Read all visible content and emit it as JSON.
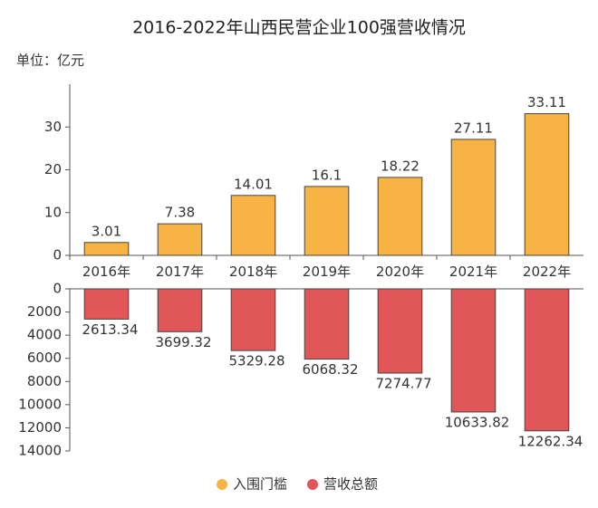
{
  "chart_data": {
    "type": "bar",
    "title": "2016-2022年山西民营企业100强营收情况",
    "y_label": "单位：亿元",
    "categories": [
      "2016年",
      "2017年",
      "2018年",
      "2019年",
      "2020年",
      "2021年",
      "2022年"
    ],
    "series": [
      {
        "name": "入围门槛",
        "color": "#f7b445",
        "values": [
          3.01,
          7.38,
          14.01,
          16.1,
          18.22,
          27.11,
          33.11
        ]
      },
      {
        "name": "营收总额",
        "color": "#e15759",
        "axis": "y2",
        "values": [
          2613.34,
          3699.32,
          5329.28,
          6068.32,
          7274.77,
          10633.82,
          12262.34
        ]
      }
    ],
    "ylim": [
      0,
      40
    ],
    "yticks": [
      0,
      10,
      20,
      30
    ],
    "y2lim": [
      0,
      14000
    ],
    "y2ticks": [
      0,
      2000,
      4000,
      6000,
      8000,
      10000,
      12000,
      14000
    ],
    "y2_inverted": true,
    "legend": "bottom"
  }
}
